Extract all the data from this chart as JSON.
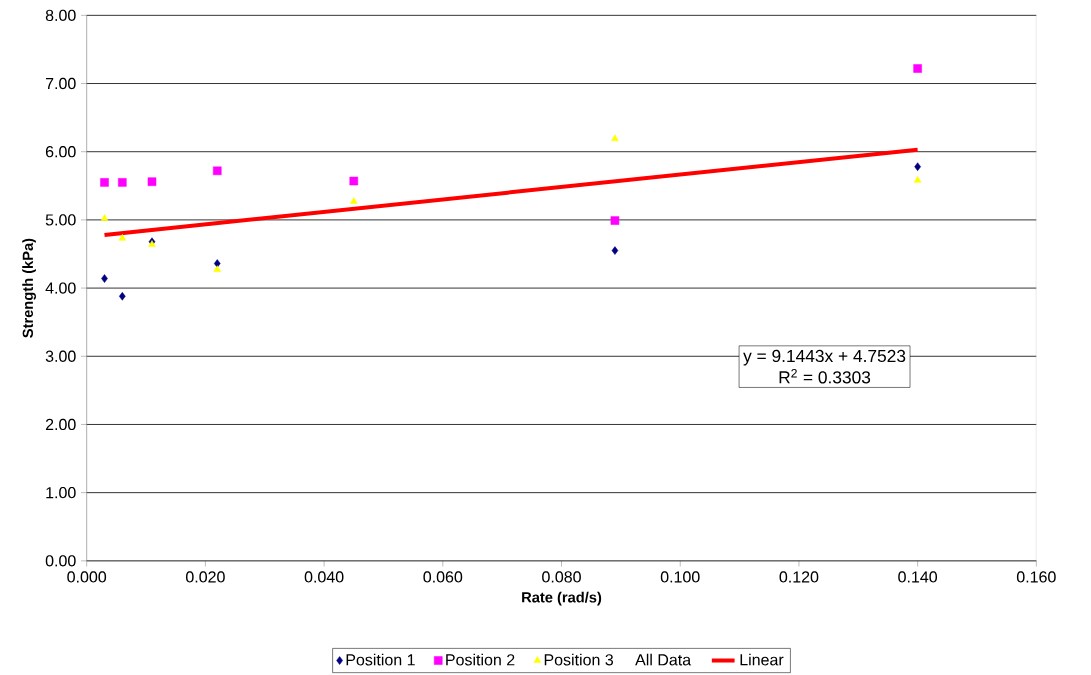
{
  "chart_data": {
    "type": "scatter",
    "xlabel": "Rate (rad/s)",
    "ylabel": "Strength (kPa)",
    "x": [
      0.003,
      0.006,
      0.011,
      0.022,
      0.045,
      0.089,
      0.14
    ],
    "series": [
      {
        "name": "Position 1",
        "color": "#000080",
        "marker": "diamond",
        "values": [
          4.14,
          3.88,
          4.68,
          4.36,
          null,
          4.55,
          5.78
        ]
      },
      {
        "name": "Position 2",
        "color": "#ff00ff",
        "marker": "square",
        "values": [
          5.55,
          5.55,
          5.56,
          5.72,
          5.57,
          4.99,
          7.22
        ]
      },
      {
        "name": "Position 3",
        "color": "#ffff00",
        "marker": "triangle",
        "values": [
          5.02,
          4.73,
          4.64,
          4.27,
          5.27,
          6.19,
          5.58
        ]
      },
      {
        "name": "Linear",
        "type": "line",
        "color": "#ff0000",
        "x": [
          0.003,
          0.14
        ],
        "values": [
          4.78,
          6.03
        ]
      }
    ],
    "legend_title": "All Data",
    "annotations": [
      "y = 9.1443x + 4.7523",
      "R$^{2}$ = 0.3303"
    ],
    "xlim": [
      0,
      0.16
    ],
    "ylim": [
      0,
      8
    ],
    "xticks": [
      {
        "value": 0,
        "label": "0.000"
      },
      {
        "value": 0.02,
        "label": "0.020"
      },
      {
        "value": 0.04,
        "label": "0.040"
      },
      {
        "value": 0.06,
        "label": "0.060"
      },
      {
        "value": 0.08,
        "label": "0.080"
      },
      {
        "value": 0.1,
        "label": "0.100"
      },
      {
        "value": 0.12,
        "label": "0.120"
      },
      {
        "value": 0.14,
        "label": "0.140"
      },
      {
        "value": 0.16,
        "label": "0.160"
      }
    ],
    "yticks": [
      {
        "value": 0,
        "label": "0.00"
      },
      {
        "value": 1,
        "label": "1.00"
      },
      {
        "value": 2,
        "label": "2.00"
      },
      {
        "value": 3,
        "label": "3.00"
      },
      {
        "value": 4,
        "label": "4.00"
      },
      {
        "value": 5,
        "label": "5.00"
      },
      {
        "value": 6,
        "label": "6.00"
      },
      {
        "value": 7,
        "label": "7.00"
      },
      {
        "value": 8,
        "label": "8.00"
      }
    ],
    "grid": "y",
    "legend": "bottom"
  }
}
